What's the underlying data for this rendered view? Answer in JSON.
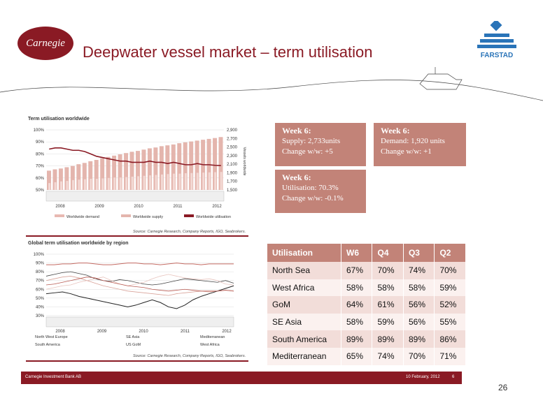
{
  "slide": {
    "title": "Deepwater vessel market – term utilisation",
    "logo_text": "Carnegie",
    "brand": "FARSTAD",
    "footer_left": "Carnegie Investment Bank AB",
    "footer_date": "10 February, 2012",
    "footer_page": "6",
    "page_number": "26"
  },
  "boxes": [
    {
      "head": "Week 6:",
      "l1": "Supply: 2,733units",
      "l2": "Change w/w: +5"
    },
    {
      "head": "Week 6:",
      "l1": "Demand: 1,920 units",
      "l2": "Change w/w: +1"
    },
    {
      "head": "Week 6:",
      "l1": "Utilisation: 70.3%",
      "l2": "Change w/w: -0.1%"
    }
  ],
  "table": {
    "headers": [
      "Utilisation",
      "W6",
      "Q4",
      "Q3",
      "Q2"
    ],
    "rows": [
      [
        "North Sea",
        "67%",
        "70%",
        "74%",
        "70%"
      ],
      [
        "West Africa",
        "58%",
        "58%",
        "58%",
        "59%"
      ],
      [
        "GoM",
        "64%",
        "61%",
        "56%",
        "52%"
      ],
      [
        "SE Asia",
        "58%",
        "59%",
        "56%",
        "55%"
      ],
      [
        "South America",
        "89%",
        "89%",
        "89%",
        "86%"
      ],
      [
        "Mediterranean",
        "65%",
        "74%",
        "70%",
        "71%"
      ]
    ]
  },
  "colors": {
    "brand": "#8a1a24",
    "box": "#c28378",
    "bars": "#e4b5ad",
    "series_light": "#e8b9b2"
  },
  "chart_data": [
    {
      "type": "bar",
      "title": "Term utilisation worldwide",
      "source": "Source: Carnegie Research, Company Reports, IGO, Seabrokers.",
      "ylabel_right": "Vessels worldwide",
      "y_left_ticks": [
        "100%",
        "90%",
        "80%",
        "70%",
        "60%",
        "50%"
      ],
      "y_left_range": [
        50,
        100
      ],
      "y_right_ticks": [
        "2,900",
        "2,700",
        "2,500",
        "2,300",
        "2,100",
        "1,900",
        "1,700",
        "1,500"
      ],
      "y_right_range": [
        1500,
        2900
      ],
      "x_ticks": [
        "2008",
        "2009",
        "2010",
        "2011",
        "2012"
      ],
      "legend": [
        "Worldwide demand",
        "Worldwide supply",
        "Worldwide utilisation"
      ],
      "series": [
        {
          "name": "Worldwide supply",
          "values": [
            1950,
            1980,
            2000,
            2030,
            2060,
            2100,
            2130,
            2170,
            2200,
            2240,
            2270,
            2300,
            2330,
            2360,
            2390,
            2410,
            2440,
            2470,
            2490,
            2520,
            2540,
            2560,
            2590,
            2610,
            2630,
            2650,
            2670,
            2690,
            2710,
            2733
          ]
        },
        {
          "name": "Worldwide demand",
          "values": [
            1660,
            1680,
            1700,
            1710,
            1730,
            1740,
            1750,
            1760,
            1760,
            1770,
            1780,
            1790,
            1790,
            1800,
            1810,
            1820,
            1830,
            1840,
            1850,
            1860,
            1870,
            1880,
            1880,
            1890,
            1895,
            1900,
            1905,
            1910,
            1915,
            1920
          ]
        },
        {
          "name": "Worldwide utilisation",
          "values": [
            84,
            85,
            85,
            84,
            83,
            83,
            82,
            80,
            78,
            77,
            76,
            75,
            74,
            74,
            73,
            73,
            73,
            74,
            73,
            73,
            72,
            73,
            72,
            71,
            71,
            72,
            71,
            71,
            70.5,
            70.3
          ]
        }
      ]
    },
    {
      "type": "line",
      "title": "Global term utilisation worldwide by region",
      "source": "Source: Carnegie Research, Company Reports, IGO, Seabrokers.",
      "y_ticks": [
        "100%",
        "90%",
        "80%",
        "70%",
        "60%",
        "50%",
        "40%",
        "30%"
      ],
      "y_range": [
        30,
        100
      ],
      "x_ticks": [
        "2008",
        "2009",
        "2010",
        "2011",
        "2012"
      ],
      "legend": [
        "North West Europe",
        "SE Asia",
        "Mediterranean",
        "South America",
        "US GoM",
        "West Africa"
      ],
      "series": [
        {
          "name": "North West Europe",
          "values": [
            75,
            77,
            79,
            80,
            78,
            76,
            72,
            70,
            69,
            71,
            70,
            68,
            66,
            65,
            66,
            68,
            70,
            72,
            71,
            70,
            69,
            68,
            70,
            67
          ]
        },
        {
          "name": "SE Asia",
          "values": [
            70,
            72,
            74,
            75,
            73,
            70,
            67,
            64,
            62,
            60,
            58,
            57,
            56,
            55,
            54,
            53,
            55,
            56,
            57,
            58,
            57,
            58,
            59,
            58
          ]
        },
        {
          "name": "Mediterranean",
          "values": [
            60,
            62,
            64,
            65,
            68,
            70,
            72,
            74,
            70,
            66,
            64,
            66,
            68,
            72,
            75,
            77,
            75,
            73,
            72,
            71,
            72,
            70,
            66,
            65
          ]
        },
        {
          "name": "South America",
          "values": [
            88,
            88,
            89,
            89,
            90,
            90,
            89,
            88,
            88,
            89,
            90,
            90,
            89,
            89,
            88,
            89,
            90,
            89,
            89,
            88,
            89,
            89,
            89,
            89
          ]
        },
        {
          "name": "US GoM",
          "values": [
            55,
            56,
            57,
            55,
            52,
            50,
            48,
            46,
            44,
            42,
            40,
            42,
            45,
            48,
            45,
            40,
            38,
            42,
            48,
            52,
            55,
            58,
            61,
            64
          ]
        },
        {
          "name": "West Africa",
          "values": [
            65,
            66,
            68,
            70,
            72,
            74,
            73,
            70,
            68,
            66,
            64,
            63,
            62,
            60,
            59,
            58,
            59,
            60,
            59,
            58,
            58,
            58,
            59,
            58
          ]
        }
      ]
    }
  ]
}
